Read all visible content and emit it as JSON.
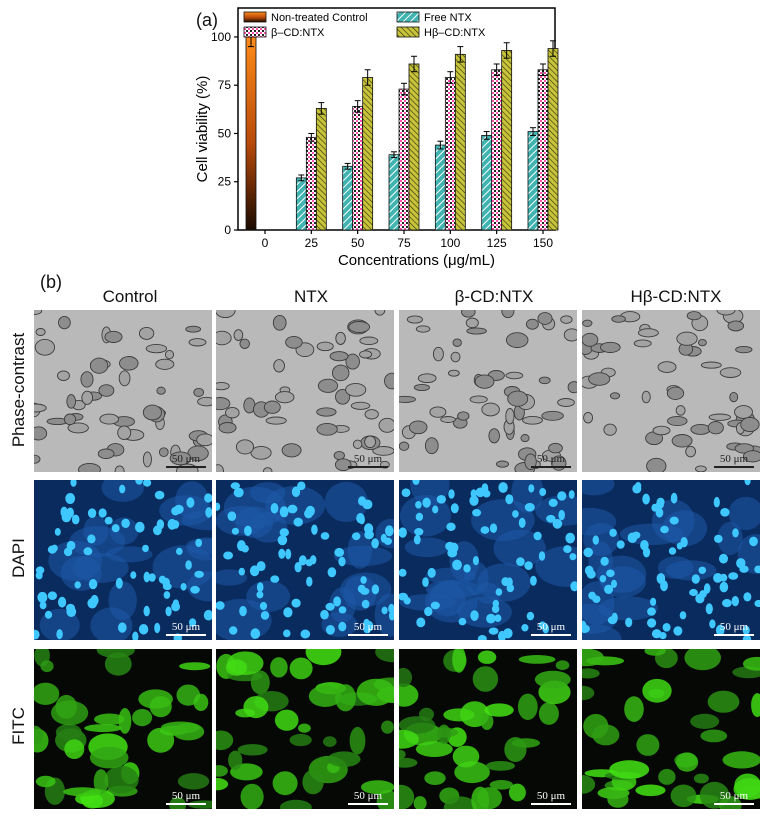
{
  "panel_a": {
    "label": "(a)"
  },
  "panel_b": {
    "label": "(b)"
  },
  "chart_data": {
    "type": "bar",
    "title": "",
    "xlabel": "Concentrations (μg/mL)",
    "ylabel": "Cell viability (%)",
    "ylim": [
      0,
      115
    ],
    "yticks": [
      0,
      25,
      50,
      75,
      100
    ],
    "categories": [
      "0",
      "25",
      "50",
      "75",
      "100",
      "125",
      "150"
    ],
    "legend_position": "top",
    "series": [
      {
        "name": "Non-treated Control",
        "color": "#e8731a",
        "values": [
          100,
          null,
          null,
          null,
          null,
          null,
          null
        ],
        "errors": [
          5,
          null,
          null,
          null,
          null,
          null,
          null
        ]
      },
      {
        "name": "Free NTX",
        "color": "#3fb4b0",
        "values": [
          null,
          27,
          33,
          39,
          44,
          49,
          51
        ],
        "errors": [
          null,
          1.5,
          1.5,
          1.5,
          2,
          2,
          2
        ]
      },
      {
        "name": "β–CD:NTX",
        "color": "#ff4fb0",
        "values": [
          null,
          48,
          64,
          73,
          79,
          83,
          83
        ],
        "errors": [
          null,
          2,
          3,
          3,
          3,
          3,
          3
        ]
      },
      {
        "name": "Hβ–CD:NTX",
        "color": "#c8c43a",
        "values": [
          null,
          63,
          79,
          86,
          91,
          93,
          94
        ],
        "errors": [
          null,
          3,
          4,
          4,
          4,
          4,
          4
        ]
      }
    ]
  },
  "microscopy": {
    "columns": [
      "Control",
      "NTX",
      "β-CD:NTX",
      "Hβ-CD:NTX"
    ],
    "rows": [
      "Phase-contrast",
      "DAPI",
      "FITC"
    ],
    "scale_label": "50 μm"
  }
}
